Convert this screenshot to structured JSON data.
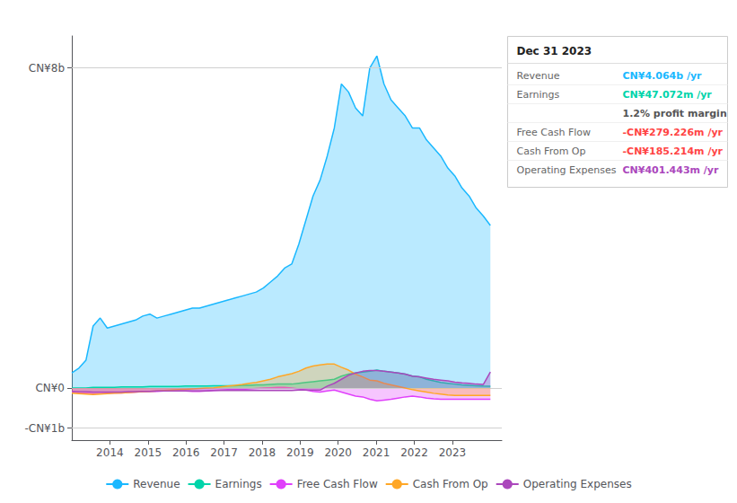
{
  "chart_data": {
    "type": "area",
    "x": [
      2013.0,
      2013.186441,
      2013.372881,
      2013.559322,
      2013.745763,
      2013.932203,
      2014.118644,
      2014.305085,
      2014.491525,
      2014.677966,
      2014.864407,
      2015.050847,
      2015.237288,
      2015.423729,
      2015.610169,
      2015.79661,
      2015.983051,
      2016.169492,
      2016.355932,
      2016.542373,
      2016.728814,
      2016.915254,
      2017.101695,
      2017.288136,
      2017.474576,
      2017.661017,
      2017.847458,
      2018.033898,
      2018.220339,
      2018.40678,
      2018.59322,
      2018.779661,
      2018.966102,
      2019.152542,
      2019.338983,
      2019.525424,
      2019.711864,
      2019.898305,
      2020.084746,
      2020.271186,
      2020.457627,
      2020.644068,
      2020.830508,
      2021.016949,
      2021.20339,
      2021.389831,
      2021.576271,
      2021.762712,
      2021.949153,
      2022.135593,
      2022.322034,
      2022.508475,
      2022.694915,
      2022.881356,
      2023.067797,
      2023.254237,
      2023.440678,
      2023.627119,
      2023.813559,
      2024.0
    ],
    "series": [
      {
        "name": "Revenue",
        "color": "#1ab8ff",
        "values": [
          0.38,
          0.5,
          0.7,
          1.55,
          1.75,
          1.5,
          1.55,
          1.6,
          1.65,
          1.7,
          1.8,
          1.85,
          1.75,
          1.8,
          1.85,
          1.9,
          1.95,
          2.0,
          2.0,
          2.05,
          2.1,
          2.15,
          2.2,
          2.25,
          2.3,
          2.35,
          2.4,
          2.5,
          2.65,
          2.8,
          3.0,
          3.1,
          3.6,
          4.2,
          4.8,
          5.2,
          5.8,
          6.5,
          7.6,
          7.4,
          7.0,
          6.8,
          8.0,
          8.3,
          7.6,
          7.2,
          7.0,
          6.8,
          6.5,
          6.5,
          6.2,
          6.0,
          5.8,
          5.5,
          5.3,
          5.0,
          4.8,
          4.5,
          4.3,
          4.064
        ]
      },
      {
        "name": "Earnings",
        "color": "#00d4aa",
        "values": [
          0.0,
          0.0,
          0.0,
          0.02,
          0.02,
          0.02,
          0.02,
          0.03,
          0.03,
          0.03,
          0.03,
          0.04,
          0.04,
          0.04,
          0.04,
          0.04,
          0.05,
          0.05,
          0.05,
          0.05,
          0.06,
          0.06,
          0.06,
          0.06,
          0.07,
          0.07,
          0.08,
          0.08,
          0.09,
          0.1,
          0.1,
          0.1,
          0.12,
          0.14,
          0.16,
          0.18,
          0.2,
          0.22,
          0.3,
          0.35,
          0.38,
          0.4,
          0.42,
          0.45,
          0.42,
          0.4,
          0.38,
          0.35,
          0.3,
          0.28,
          0.22,
          0.18,
          0.14,
          0.12,
          0.1,
          0.08,
          0.07,
          0.06,
          0.05,
          0.047
        ]
      },
      {
        "name": "Free Cash Flow",
        "color": "#e040fb",
        "values": [
          -0.1,
          -0.12,
          -0.13,
          -0.14,
          -0.14,
          -0.13,
          -0.12,
          -0.12,
          -0.11,
          -0.1,
          -0.09,
          -0.08,
          -0.08,
          -0.07,
          -0.07,
          -0.07,
          -0.07,
          -0.08,
          -0.08,
          -0.07,
          -0.06,
          -0.05,
          -0.04,
          -0.03,
          -0.03,
          -0.02,
          -0.01,
          0.0,
          0.01,
          0.02,
          0.02,
          0.0,
          -0.02,
          -0.05,
          -0.08,
          -0.1,
          -0.07,
          -0.05,
          -0.1,
          -0.15,
          -0.2,
          -0.22,
          -0.28,
          -0.32,
          -0.3,
          -0.28,
          -0.25,
          -0.22,
          -0.2,
          -0.22,
          -0.25,
          -0.27,
          -0.28,
          -0.28,
          -0.28,
          -0.28,
          -0.28,
          -0.28,
          -0.279,
          -0.279
        ]
      },
      {
        "name": "Cash From Op",
        "color": "#ffa726",
        "values": [
          -0.13,
          -0.14,
          -0.15,
          -0.16,
          -0.15,
          -0.14,
          -0.13,
          -0.12,
          -0.11,
          -0.1,
          -0.09,
          -0.08,
          -0.07,
          -0.06,
          -0.05,
          -0.04,
          -0.03,
          -0.02,
          -0.01,
          0.0,
          0.01,
          0.03,
          0.05,
          0.07,
          0.09,
          0.12,
          0.14,
          0.18,
          0.22,
          0.28,
          0.32,
          0.36,
          0.42,
          0.5,
          0.55,
          0.58,
          0.6,
          0.6,
          0.52,
          0.45,
          0.35,
          0.28,
          0.2,
          0.18,
          0.12,
          0.08,
          0.04,
          0.0,
          -0.04,
          -0.07,
          -0.1,
          -0.13,
          -0.15,
          -0.17,
          -0.185,
          -0.185,
          -0.185,
          -0.185,
          -0.185,
          -0.185
        ]
      },
      {
        "name": "Operating Expenses",
        "color": "#ab47bc",
        "values": [
          -0.08,
          -0.09,
          -0.09,
          -0.1,
          -0.1,
          -0.1,
          -0.1,
          -0.1,
          -0.09,
          -0.09,
          -0.08,
          -0.08,
          -0.07,
          -0.07,
          -0.07,
          -0.07,
          -0.07,
          -0.07,
          -0.07,
          -0.07,
          -0.06,
          -0.06,
          -0.06,
          -0.06,
          -0.06,
          -0.06,
          -0.06,
          -0.06,
          -0.06,
          -0.06,
          -0.06,
          -0.06,
          -0.05,
          -0.05,
          -0.05,
          -0.05,
          0.05,
          0.12,
          0.22,
          0.32,
          0.38,
          0.42,
          0.44,
          0.44,
          0.42,
          0.4,
          0.38,
          0.35,
          0.3,
          0.28,
          0.25,
          0.22,
          0.2,
          0.18,
          0.15,
          0.13,
          0.12,
          0.1,
          0.09,
          0.401
        ]
      }
    ],
    "xlim": [
      2013.0,
      2024.3
    ],
    "xticks": [
      2014,
      2015,
      2016,
      2017,
      2018,
      2019,
      2020,
      2021,
      2022,
      2023
    ],
    "ylim": [
      -1.3,
      8.8
    ],
    "yticks": [
      {
        "value": -1,
        "label": "-CN¥1b"
      },
      {
        "value": 0,
        "label": "CN¥0"
      },
      {
        "value": 8,
        "label": "CN¥8b"
      }
    ],
    "grid": true,
    "legend": "bottom",
    "annotations": [
      {
        "title": "Dec 31 2023",
        "rows": [
          {
            "label": "Revenue",
            "value": "CN¥4.064b /yr",
            "color": "#1ab8ff"
          },
          {
            "label": "Earnings",
            "value": "CN¥47.072m /yr",
            "color": "#00d4aa"
          },
          {
            "value": "1.2% profit margin",
            "color": "#dddddd"
          },
          {
            "label": "Free Cash Flow",
            "value": "-CN¥279.226m /yr",
            "color": "#ff4444"
          },
          {
            "label": "Cash From Op",
            "value": "-CN¥185.214m /yr",
            "color": "#ff4444"
          },
          {
            "label": "Operating Expenses",
            "value": "CN¥401.443m /yr",
            "color": "#ab47bc"
          }
        ]
      }
    ]
  }
}
